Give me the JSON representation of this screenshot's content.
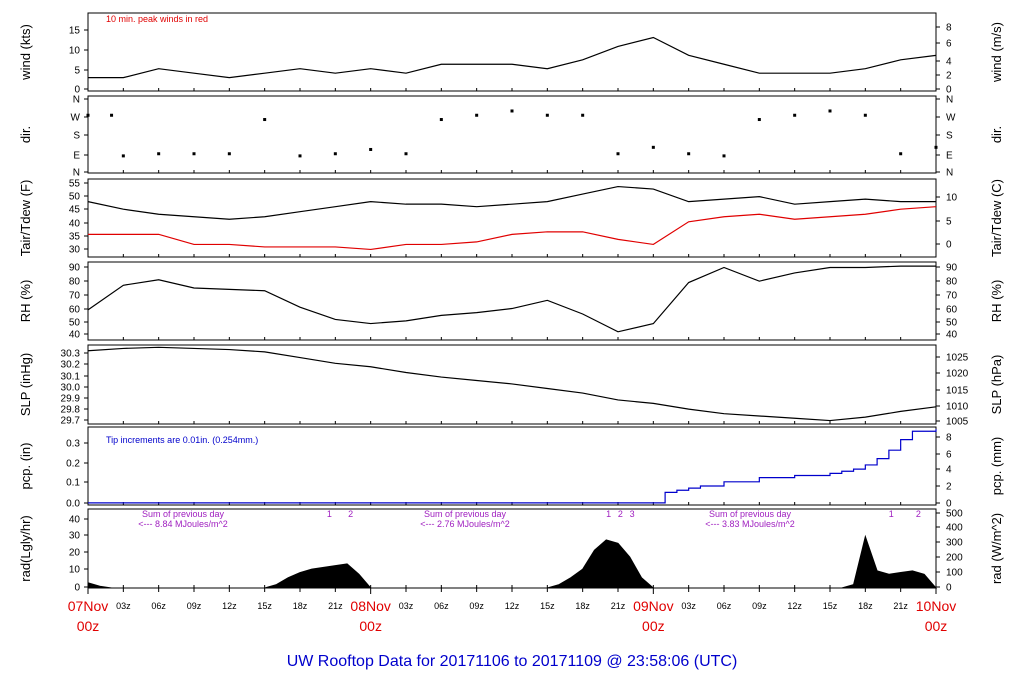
{
  "title": "UW Rooftop Data for 20171106  to  20171109 @ 23:58:06  (UTC)",
  "x_axis": {
    "hour_ticks": [
      "03z",
      "06z",
      "09z",
      "12z",
      "15z",
      "18z",
      "21z"
    ],
    "day_labels": [
      {
        "date": "07Nov",
        "hour": "00z"
      },
      {
        "date": "08Nov",
        "hour": "00z"
      },
      {
        "date": "09Nov",
        "hour": "00z"
      },
      {
        "date": "10Nov",
        "hour": "00z"
      }
    ],
    "range_hours": [
      0,
      72
    ]
  },
  "panels": {
    "wind": {
      "ylabel_left": "wind (kts)",
      "ylabel_right": "wind (m/s)",
      "left_ticks": [
        "0",
        "5",
        "10",
        "15"
      ],
      "right_ticks": [
        "0",
        "2",
        "4",
        "6",
        "8"
      ],
      "note": "10 min. peak winds in red"
    },
    "dir": {
      "ylabel_left": "dir.",
      "ylabel_right": "dir.",
      "left_ticks": [
        "N",
        "E",
        "S",
        "W",
        "N"
      ],
      "right_ticks": [
        "N",
        "E",
        "S",
        "W",
        "N"
      ]
    },
    "temp": {
      "ylabel_left": "Tair/Tdew (F)",
      "ylabel_right": "Tair/Tdew (C)",
      "left_ticks": [
        "30",
        "35",
        "40",
        "45",
        "50",
        "55"
      ],
      "right_ticks": [
        "0",
        "5",
        "10"
      ]
    },
    "rh": {
      "ylabel_left": "RH (%)",
      "ylabel_right": "RH (%)",
      "left_ticks": [
        "40",
        "50",
        "60",
        "70",
        "80",
        "90"
      ],
      "right_ticks": [
        "40",
        "50",
        "60",
        "70",
        "80",
        "90"
      ]
    },
    "slp": {
      "ylabel_left": "SLP (inHg)",
      "ylabel_right": "SLP (hPa)",
      "left_ticks": [
        "29.7",
        "29.8",
        "29.9",
        "30.0",
        "30.1",
        "30.2",
        "30.3"
      ],
      "right_ticks": [
        "1005",
        "1010",
        "1015",
        "1020",
        "1025"
      ]
    },
    "pcp": {
      "ylabel_left": "pcp. (in)",
      "ylabel_right": "pcp. (mm)",
      "left_ticks": [
        "0.0",
        "0.1",
        "0.2",
        "0.3"
      ],
      "right_ticks": [
        "0",
        "2",
        "4",
        "6",
        "8"
      ],
      "note": "Tip increments are 0.01in. (0.254mm.)"
    },
    "rad": {
      "ylabel_left": "rad(Lgly/hr)",
      "ylabel_right": "rad (W/m^2)",
      "left_ticks": [
        "0",
        "10",
        "20",
        "30",
        "40"
      ],
      "right_ticks": [
        "0",
        "100",
        "200",
        "300",
        "400",
        "500"
      ],
      "day_notes": [
        {
          "line1": "Sum of previous day",
          "line2": "<--- 8.84 MJoules/m^2"
        },
        {
          "line1": "Sum of previous day",
          "line2": "<--- 2.76 MJoules/m^2"
        },
        {
          "line1": "Sum of previous day",
          "line2": "<--- 3.83 MJoules/m^2"
        }
      ],
      "peak_markers": [
        {
          "label": "1",
          "hour": 20.5
        },
        {
          "label": "2",
          "hour": 22.3
        },
        {
          "label": "1",
          "hour": 44.2
        },
        {
          "label": "2",
          "hour": 45.2
        },
        {
          "label": "3",
          "hour": 46.2
        },
        {
          "label": "1",
          "hour": 68.2
        },
        {
          "label": "2",
          "hour": 70.5
        }
      ]
    }
  },
  "chart_data": {
    "type": "line",
    "x_unit": "hours since 07Nov 00z",
    "series": [
      {
        "name": "wind speed (kts)",
        "panel": "wind",
        "color": "#000000",
        "x": [
          0,
          3,
          6,
          9,
          12,
          15,
          18,
          21,
          24,
          27,
          30,
          33,
          36,
          39,
          42,
          45,
          48,
          51,
          54,
          57,
          60,
          63,
          66,
          69,
          72
        ],
        "values": [
          3,
          3,
          5,
          4,
          3,
          4,
          5,
          4,
          5,
          4,
          6,
          6,
          6,
          5,
          7,
          10,
          12,
          8,
          6,
          4,
          4,
          4,
          5,
          7,
          8
        ],
        "ylim": [
          0,
          17.5
        ]
      },
      {
        "name": "wind direction",
        "panel": "dir",
        "color": "#000000",
        "x": [
          0,
          2,
          3,
          6,
          9,
          12,
          15,
          18,
          21,
          24,
          27,
          30,
          33,
          36,
          39,
          42,
          45,
          48,
          51,
          54,
          57,
          60,
          63,
          66,
          69,
          72
        ],
        "values": [
          270,
          270,
          80,
          90,
          90,
          90,
          250,
          80,
          90,
          110,
          90,
          250,
          270,
          290,
          270,
          270,
          90,
          120,
          90,
          80,
          250,
          270,
          290,
          270,
          90,
          120
        ],
        "categories": [
          "N",
          "E",
          "S",
          "W",
          "N"
        ],
        "ylim": [
          0,
          360
        ]
      },
      {
        "name": "Tair (F)",
        "panel": "temp",
        "color": "#000000",
        "x": [
          0,
          3,
          6,
          9,
          12,
          15,
          18,
          21,
          24,
          27,
          30,
          33,
          36,
          39,
          42,
          45,
          48,
          51,
          54,
          57,
          60,
          63,
          66,
          69,
          72
        ],
        "values": [
          48,
          45,
          43,
          42,
          41,
          42,
          44,
          46,
          48,
          47,
          47,
          46,
          47,
          48,
          51,
          54,
          53,
          48,
          49,
          50,
          47,
          48,
          49,
          48,
          48
        ],
        "ylim": [
          26,
          57
        ]
      },
      {
        "name": "Tdew (F)",
        "panel": "temp",
        "color": "#e00000",
        "x": [
          0,
          3,
          6,
          9,
          12,
          15,
          18,
          21,
          24,
          27,
          30,
          33,
          36,
          39,
          42,
          45,
          48,
          51,
          54,
          57,
          60,
          63,
          66,
          69,
          72
        ],
        "values": [
          35,
          35,
          35,
          31,
          31,
          30,
          30,
          30,
          29,
          31,
          31,
          32,
          35,
          36,
          36,
          33,
          31,
          40,
          42,
          43,
          41,
          42,
          43,
          45,
          46
        ],
        "ylim": [
          26,
          57
        ]
      },
      {
        "name": "RH (%)",
        "panel": "rh",
        "color": "#000000",
        "x": [
          0,
          3,
          6,
          9,
          12,
          15,
          18,
          21,
          24,
          27,
          30,
          33,
          36,
          39,
          42,
          45,
          48,
          51,
          54,
          57,
          60,
          63,
          66,
          69,
          72
        ],
        "values": [
          58,
          76,
          80,
          74,
          73,
          72,
          60,
          51,
          48,
          50,
          54,
          56,
          59,
          65,
          55,
          42,
          48,
          78,
          89,
          79,
          85,
          89,
          89,
          90,
          90
        ],
        "ylim": [
          36,
          93
        ]
      },
      {
        "name": "SLP (inHg)",
        "panel": "slp",
        "color": "#000000",
        "x": [
          0,
          3,
          6,
          9,
          12,
          15,
          18,
          21,
          24,
          27,
          30,
          33,
          36,
          39,
          42,
          45,
          48,
          51,
          54,
          57,
          60,
          63,
          66,
          69,
          72
        ],
        "values": [
          30.31,
          30.33,
          30.34,
          30.33,
          30.32,
          30.3,
          30.25,
          30.2,
          30.17,
          30.12,
          30.08,
          30.05,
          30.02,
          29.98,
          29.94,
          29.88,
          29.85,
          29.8,
          29.76,
          29.74,
          29.72,
          29.7,
          29.73,
          29.78,
          29.82
        ],
        "ylim": [
          29.67,
          30.36
        ]
      },
      {
        "name": "precip (in)",
        "panel": "pcp",
        "color": "#0000cc",
        "x": [
          0,
          48,
          49,
          50,
          51,
          52,
          54,
          57,
          60,
          63,
          64,
          65,
          66,
          67,
          68,
          69,
          70,
          72
        ],
        "values": [
          0,
          0,
          0.05,
          0.06,
          0.07,
          0.08,
          0.1,
          0.12,
          0.13,
          0.14,
          0.15,
          0.16,
          0.18,
          0.21,
          0.25,
          0.3,
          0.34,
          0.35
        ],
        "ylim": [
          -0.01,
          0.36
        ]
      },
      {
        "name": "radiation (Lgly/hr)",
        "panel": "rad",
        "color": "#000000",
        "fill": true,
        "x": [
          0,
          1,
          2,
          14,
          15,
          16,
          17,
          18,
          19,
          20,
          21,
          22,
          23,
          24,
          38,
          39,
          40,
          41,
          42,
          43,
          44,
          45,
          46,
          47,
          48,
          62,
          63,
          64,
          65,
          66,
          67,
          68,
          69,
          70,
          71,
          72
        ],
        "values": [
          3,
          1,
          0,
          0,
          0,
          2,
          6,
          9,
          11,
          12,
          13,
          14,
          8,
          0,
          0,
          0,
          2,
          6,
          11,
          22,
          28,
          26,
          18,
          6,
          0,
          0,
          0,
          0,
          2,
          30,
          10,
          8,
          9,
          10,
          8,
          0
        ],
        "ylim": [
          0,
          46
        ]
      }
    ]
  }
}
